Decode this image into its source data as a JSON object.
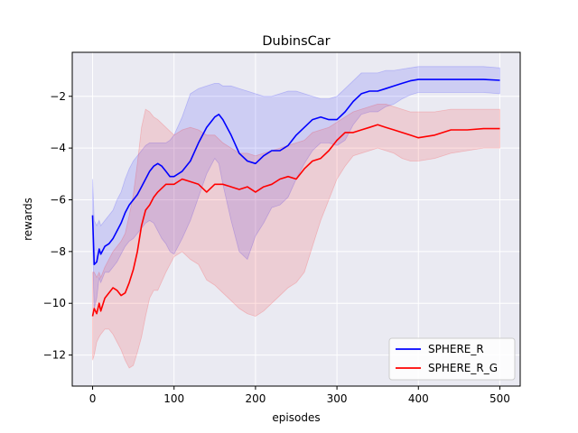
{
  "chart_data": {
    "type": "line",
    "title": "DubinsCar",
    "xlabel": "episodes",
    "ylabel": "rewards",
    "xlim": [
      -25,
      525
    ],
    "ylim": [
      -13.2,
      -0.3
    ],
    "xticks": [
      0,
      100,
      200,
      300,
      400,
      500
    ],
    "yticks": [
      -12,
      -10,
      -8,
      -6,
      -4,
      -2
    ],
    "grid": true,
    "background": "#eaeaf2",
    "legend_position": "lower-right",
    "series": [
      {
        "name": "SPHERE_R",
        "color": "#0000ff",
        "x": [
          0,
          2,
          5,
          8,
          10,
          15,
          20,
          25,
          30,
          35,
          40,
          45,
          50,
          55,
          60,
          65,
          70,
          75,
          80,
          85,
          90,
          95,
          100,
          110,
          120,
          130,
          140,
          150,
          155,
          160,
          170,
          180,
          190,
          200,
          210,
          220,
          230,
          240,
          250,
          260,
          270,
          280,
          290,
          300,
          310,
          320,
          330,
          340,
          350,
          360,
          370,
          380,
          390,
          400,
          420,
          440,
          460,
          480,
          500
        ],
        "y": [
          -6.6,
          -8.5,
          -8.4,
          -7.9,
          -8.1,
          -7.8,
          -7.7,
          -7.5,
          -7.2,
          -6.9,
          -6.5,
          -6.2,
          -6.0,
          -5.8,
          -5.5,
          -5.2,
          -4.9,
          -4.7,
          -4.6,
          -4.7,
          -4.9,
          -5.1,
          -5.1,
          -4.9,
          -4.5,
          -3.8,
          -3.2,
          -2.8,
          -2.7,
          -2.9,
          -3.5,
          -4.2,
          -4.5,
          -4.6,
          -4.3,
          -4.1,
          -4.1,
          -3.9,
          -3.5,
          -3.2,
          -2.9,
          -2.8,
          -2.9,
          -2.9,
          -2.6,
          -2.2,
          -1.9,
          -1.8,
          -1.8,
          -1.7,
          -1.6,
          -1.5,
          -1.4,
          -1.35,
          -1.35,
          -1.35,
          -1.35,
          -1.35,
          -1.38
        ],
        "band_upper": [
          -5.2,
          -6.8,
          -7.0,
          -6.8,
          -7.0,
          -6.8,
          -6.6,
          -6.4,
          -6.0,
          -5.7,
          -5.2,
          -4.8,
          -4.5,
          -4.3,
          -4.1,
          -3.9,
          -3.8,
          -3.8,
          -3.8,
          -3.8,
          -3.8,
          -3.7,
          -3.5,
          -2.8,
          -1.9,
          -1.7,
          -1.6,
          -1.5,
          -1.5,
          -1.6,
          -1.6,
          -1.7,
          -1.8,
          -1.9,
          -2.0,
          -2.0,
          -1.9,
          -1.8,
          -1.8,
          -1.9,
          -2.0,
          -2.1,
          -2.1,
          -2.0,
          -1.7,
          -1.4,
          -1.1,
          -1.1,
          -1.1,
          -1.0,
          -1.0,
          -0.95,
          -0.9,
          -0.85,
          -0.85,
          -0.85,
          -0.85,
          -0.85,
          -0.9
        ],
        "band_lower": [
          -8.0,
          -10.2,
          -9.8,
          -9.0,
          -9.2,
          -8.8,
          -8.8,
          -8.6,
          -8.4,
          -8.1,
          -7.8,
          -7.6,
          -7.5,
          -7.3,
          -7.1,
          -6.9,
          -6.8,
          -6.9,
          -7.2,
          -7.5,
          -7.7,
          -8.0,
          -8.1,
          -7.5,
          -6.8,
          -5.9,
          -5.0,
          -4.4,
          -4.6,
          -5.4,
          -6.8,
          -8.0,
          -8.3,
          -7.4,
          -6.9,
          -6.3,
          -6.2,
          -5.9,
          -5.2,
          -4.6,
          -4.1,
          -3.8,
          -3.8,
          -3.9,
          -3.7,
          -3.1,
          -2.7,
          -2.6,
          -2.6,
          -2.4,
          -2.3,
          -2.1,
          -1.95,
          -1.85,
          -1.85,
          -1.85,
          -1.85,
          -1.85,
          -1.9
        ]
      },
      {
        "name": "SPHERE_R_G",
        "color": "#ff0000",
        "x": [
          0,
          2,
          5,
          8,
          10,
          15,
          20,
          25,
          30,
          35,
          40,
          45,
          50,
          55,
          60,
          65,
          70,
          75,
          80,
          90,
          100,
          110,
          120,
          130,
          140,
          150,
          160,
          170,
          180,
          190,
          200,
          210,
          220,
          230,
          240,
          250,
          260,
          270,
          280,
          290,
          300,
          310,
          320,
          330,
          340,
          350,
          360,
          370,
          380,
          390,
          400,
          420,
          440,
          460,
          480,
          500
        ],
        "y": [
          -10.5,
          -10.2,
          -10.4,
          -10.0,
          -10.3,
          -9.8,
          -9.6,
          -9.4,
          -9.5,
          -9.7,
          -9.6,
          -9.2,
          -8.7,
          -8.0,
          -7.0,
          -6.4,
          -6.2,
          -5.9,
          -5.7,
          -5.4,
          -5.4,
          -5.2,
          -5.3,
          -5.4,
          -5.7,
          -5.4,
          -5.4,
          -5.5,
          -5.6,
          -5.5,
          -5.7,
          -5.5,
          -5.4,
          -5.2,
          -5.1,
          -5.2,
          -4.8,
          -4.5,
          -4.4,
          -4.1,
          -3.7,
          -3.4,
          -3.4,
          -3.3,
          -3.2,
          -3.1,
          -3.2,
          -3.3,
          -3.4,
          -3.5,
          -3.6,
          -3.5,
          -3.3,
          -3.3,
          -3.25,
          -3.25
        ],
        "band_upper": [
          -8.8,
          -8.8,
          -9.0,
          -8.8,
          -9.0,
          -8.6,
          -8.3,
          -8.0,
          -7.8,
          -7.6,
          -7.3,
          -6.6,
          -5.8,
          -4.6,
          -3.2,
          -2.5,
          -2.6,
          -2.8,
          -2.9,
          -3.2,
          -3.5,
          -3.3,
          -3.2,
          -3.3,
          -3.5,
          -3.5,
          -3.8,
          -4.0,
          -4.2,
          -4.2,
          -4.3,
          -4.2,
          -4.1,
          -4.0,
          -3.9,
          -3.8,
          -3.7,
          -3.4,
          -3.3,
          -3.2,
          -3.0,
          -2.8,
          -2.6,
          -2.5,
          -2.4,
          -2.3,
          -2.3,
          -2.4,
          -2.5,
          -2.6,
          -2.6,
          -2.6,
          -2.5,
          -2.5,
          -2.5,
          -2.5
        ],
        "band_lower": [
          -12.2,
          -12.0,
          -11.5,
          -11.3,
          -11.2,
          -11.0,
          -11.0,
          -11.2,
          -11.5,
          -11.8,
          -12.2,
          -12.5,
          -12.4,
          -11.9,
          -11.3,
          -10.5,
          -9.8,
          -9.5,
          -9.5,
          -8.8,
          -8.2,
          -8.0,
          -8.3,
          -8.5,
          -9.1,
          -9.3,
          -9.6,
          -9.9,
          -10.2,
          -10.4,
          -10.5,
          -10.3,
          -10.0,
          -9.7,
          -9.4,
          -9.2,
          -8.8,
          -7.8,
          -6.8,
          -6.0,
          -5.2,
          -4.7,
          -4.3,
          -4.2,
          -4.1,
          -4.0,
          -4.1,
          -4.2,
          -4.4,
          -4.5,
          -4.5,
          -4.4,
          -4.2,
          -4.1,
          -4.0,
          -4.0
        ]
      }
    ]
  }
}
